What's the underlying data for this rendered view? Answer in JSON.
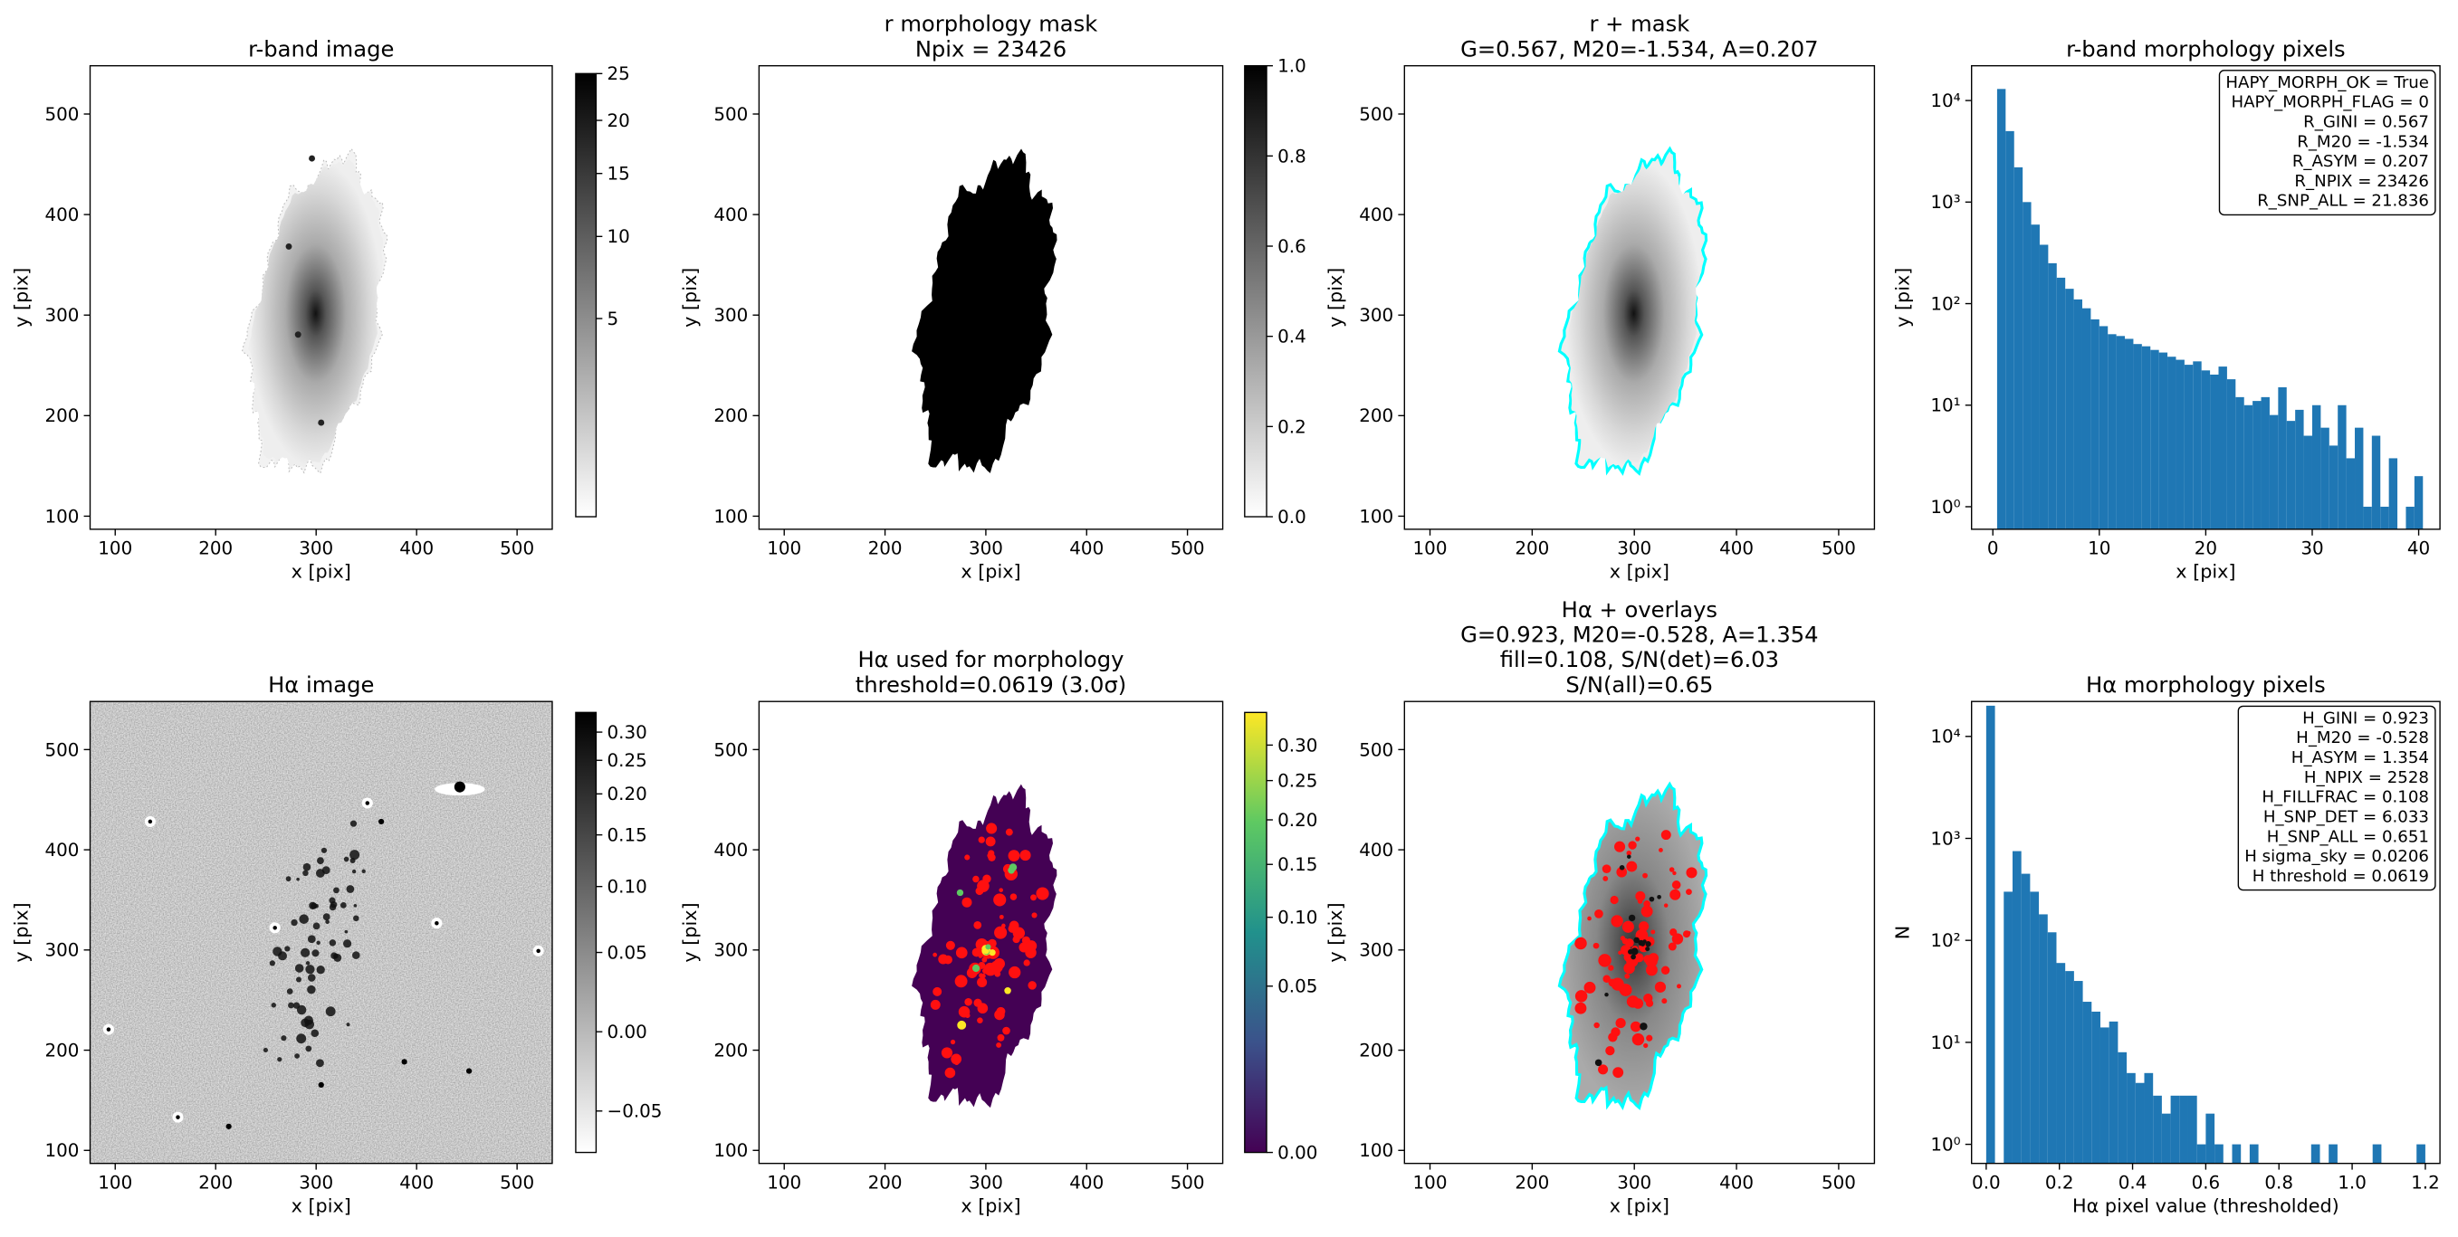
{
  "chart_data": [
    {
      "type": "image",
      "title": [
        "r-band image"
      ],
      "xlabel": "x [pix]",
      "ylabel": "y [pix]",
      "xlim": [
        75,
        535
      ],
      "ylim": [
        87,
        548
      ],
      "xticks": [
        100,
        200,
        300,
        400,
        500
      ],
      "yticks": [
        100,
        200,
        300,
        400,
        500
      ],
      "cmap": "gray_r",
      "cbar_scale": "sqrt",
      "cbar_lim": [
        0,
        25
      ],
      "cbar_ticks": [
        5,
        10,
        15,
        20,
        25
      ]
    },
    {
      "type": "image",
      "title": [
        "r morphology mask",
        "Npix = 23426"
      ],
      "xlabel": "x [pix]",
      "ylabel": "y [pix]",
      "xlim": [
        75,
        535
      ],
      "ylim": [
        87,
        548
      ],
      "xticks": [
        100,
        200,
        300,
        400,
        500
      ],
      "yticks": [
        100,
        200,
        300,
        400,
        500
      ],
      "cmap": "gray_r",
      "cbar_scale": "linear",
      "cbar_lim": [
        0,
        1
      ],
      "cbar_ticks": [
        {
          "value": 0,
          "label": "0.0"
        },
        0.2,
        0.4,
        0.6,
        0.8,
        {
          "value": 1,
          "label": "1.0"
        }
      ]
    },
    {
      "type": "image",
      "title": [
        "r + mask",
        "G=0.567, M20=-1.534, A=0.207"
      ],
      "xlabel": "x [pix]",
      "ylabel": "y [pix]",
      "xlim": [
        75,
        535
      ],
      "ylim": [
        87,
        548
      ],
      "xticks": [
        100,
        200,
        300,
        400,
        500
      ],
      "yticks": [
        100,
        200,
        300,
        400,
        500
      ],
      "overlay_color": "#00ffff"
    },
    {
      "type": "histogram",
      "title": [
        "r-band morphology pixels"
      ],
      "xlabel": "x [pix]",
      "ylabel": "y [pix]",
      "xlim": [
        -2,
        42
      ],
      "xticks": [
        0,
        10,
        20,
        30,
        40
      ],
      "yscale": "log",
      "ylim": [
        0.6,
        22000
      ],
      "yticks": [
        {
          "value": 1,
          "label": "10⁰"
        },
        {
          "value": 10,
          "label": "10¹"
        },
        {
          "value": 100,
          "label": "10²"
        },
        {
          "value": 1000,
          "label": "10³"
        },
        {
          "value": 10000,
          "label": "10⁴"
        }
      ],
      "color": "#1f77b4",
      "bins": [
        0.4,
        1.2,
        2,
        2.8,
        3.6,
        4.4,
        5.2,
        6,
        6.8,
        7.6,
        8.4,
        9.2,
        10,
        10.8,
        11.6,
        12.4,
        13.2,
        14,
        14.8,
        15.6,
        16.4,
        17.2,
        18,
        18.8,
        19.6,
        20.4,
        21.2,
        22,
        22.8,
        23.6,
        24.4,
        25.2,
        26,
        26.8,
        27.6,
        28.4,
        29.2,
        30,
        30.8,
        31.6,
        32.4,
        33.2,
        34,
        34.8,
        35.6,
        36.4,
        37.2,
        38,
        38.8,
        39.6,
        40.4
      ],
      "values": [
        13000,
        5000,
        2200,
        1000,
        600,
        380,
        250,
        180,
        140,
        110,
        90,
        70,
        60,
        50,
        48,
        45,
        40,
        38,
        35,
        33,
        30,
        28,
        25,
        27,
        22,
        20,
        24,
        18,
        12,
        10,
        11,
        12,
        8,
        15,
        7,
        9,
        5,
        10,
        6,
        4,
        10,
        3,
        6,
        1,
        5,
        1,
        3,
        0,
        1,
        2
      ],
      "annotation": [
        "HAPY_MORPH_OK = True",
        "HAPY_MORPH_FLAG = 0",
        "R_GINI = 0.567",
        "R_M20 = -1.534",
        "R_ASYM = 0.207",
        "R_NPIX = 23426",
        "R_SNP_ALL = 21.836"
      ]
    },
    {
      "type": "image",
      "title": [
        "Hα image"
      ],
      "xlabel": "x [pix]",
      "ylabel": "y [pix]",
      "xlim": [
        75,
        535
      ],
      "ylim": [
        87,
        548
      ],
      "xticks": [
        100,
        200,
        300,
        400,
        500
      ],
      "yticks": [
        100,
        200,
        300,
        400,
        500
      ],
      "cmap": "gray_r",
      "cbar_scale": "asinh",
      "cbar_lim": [
        -0.08,
        0.34
      ],
      "cbar_ticks": [
        {
          "value": -0.05,
          "label": "−0.05"
        },
        {
          "value": 0,
          "label": "0.00"
        },
        0.05,
        {
          "value": 0.1,
          "label": "0.10"
        },
        0.15,
        {
          "value": 0.2,
          "label": "0.20"
        },
        0.25,
        {
          "value": 0.3,
          "label": "0.30"
        }
      ]
    },
    {
      "type": "image",
      "title": [
        "Hα used for morphology",
        "threshold=0.0619 (3.0σ)"
      ],
      "xlabel": "x [pix]",
      "ylabel": "y [pix]",
      "xlim": [
        75,
        535
      ],
      "ylim": [
        87,
        548
      ],
      "xticks": [
        100,
        200,
        300,
        400,
        500
      ],
      "yticks": [
        100,
        200,
        300,
        400,
        500
      ],
      "cmap": "viridis",
      "cbar_scale": "sqrt",
      "cbar_lim": [
        0,
        0.35
      ],
      "cbar_ticks": [
        {
          "value": 0,
          "label": "0.00"
        },
        0.05,
        {
          "value": 0.1,
          "label": "0.10"
        },
        0.15,
        {
          "value": 0.2,
          "label": "0.20"
        },
        0.25,
        {
          "value": 0.3,
          "label": "0.30"
        }
      ]
    },
    {
      "type": "image",
      "title": [
        "Hα + overlays",
        "G=0.923, M20=-0.528, A=1.354",
        "fill=0.108, S/N(det)=6.03",
        "S/N(all)=0.65"
      ],
      "xlabel": "x [pix]",
      "ylabel": "y [pix]",
      "xlim": [
        75,
        535
      ],
      "ylim": [
        87,
        548
      ],
      "xticks": [
        100,
        200,
        300,
        400,
        500
      ],
      "yticks": [
        100,
        200,
        300,
        400,
        500
      ],
      "overlay_color": "#00ffff"
    },
    {
      "type": "histogram",
      "title": [
        "Hα morphology pixels"
      ],
      "xlabel": "Hα pixel value (thresholded)",
      "ylabel": "N",
      "xlim": [
        -0.04,
        1.24
      ],
      "xticks": [
        {
          "value": 0,
          "label": "0.0"
        },
        0.2,
        0.4,
        0.6,
        0.8,
        {
          "value": 1,
          "label": "1.0"
        },
        1.2
      ],
      "yscale": "log",
      "ylim": [
        0.65,
        22000
      ],
      "yticks": [
        {
          "value": 1,
          "label": "10⁰"
        },
        {
          "value": 10,
          "label": "10¹"
        },
        {
          "value": 100,
          "label": "10²"
        },
        {
          "value": 1000,
          "label": "10³"
        },
        {
          "value": 10000,
          "label": "10⁴"
        }
      ],
      "color": "#1f77b4",
      "bins": [
        0,
        0.024,
        0.048,
        0.072,
        0.096,
        0.12,
        0.144,
        0.168,
        0.192,
        0.216,
        0.24,
        0.264,
        0.288,
        0.312,
        0.336,
        0.36,
        0.384,
        0.408,
        0.432,
        0.456,
        0.48,
        0.504,
        0.528,
        0.552,
        0.576,
        0.6,
        0.624,
        0.648,
        0.672,
        0.696,
        0.72,
        0.744,
        0.768,
        0.792,
        0.816,
        0.84,
        0.864,
        0.888,
        0.912,
        0.936,
        0.96,
        0.984,
        1.008,
        1.032,
        1.056,
        1.08,
        1.104,
        1.128,
        1.152,
        1.176,
        1.2
      ],
      "values": [
        20000,
        0,
        300,
        750,
        450,
        300,
        180,
        120,
        60,
        50,
        40,
        25,
        20,
        14,
        16,
        8,
        5,
        4,
        5,
        3,
        2,
        3,
        3,
        3,
        1,
        2,
        1,
        0,
        1,
        0,
        1,
        0,
        0,
        0,
        0,
        0,
        0,
        1,
        0,
        1,
        0,
        0,
        0,
        0,
        1,
        0,
        0,
        0,
        0,
        1
      ],
      "annotation": [
        "H_GINI = 0.923",
        "H_M20 = -0.528",
        "H_ASYM = 1.354",
        "H_NPIX = 2528",
        "H_FILLFRAC = 0.108",
        "H_SNP_DET = 6.033",
        "H_SNP_ALL = 0.651",
        "H sigma_sky = 0.0206",
        "H threshold = 0.0619"
      ]
    }
  ]
}
